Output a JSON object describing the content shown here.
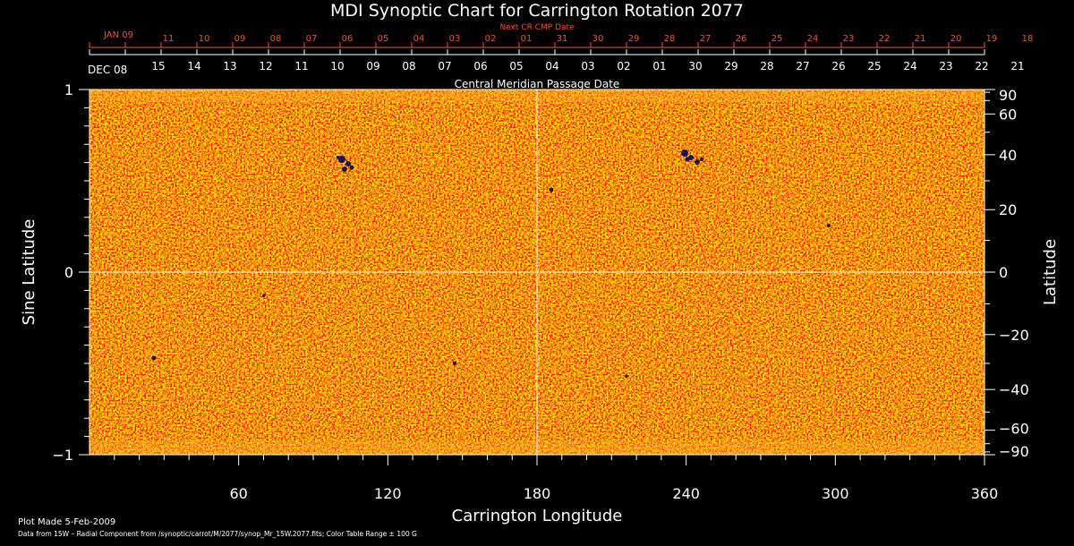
{
  "chart_data": {
    "type": "heatmap",
    "title": "MDI Synoptic Chart for Carrington Rotation 2077",
    "xlabel": "Carrington Longitude",
    "ylabel_left": "Sine Latitude",
    "ylabel_right": "Latitude",
    "xlim": [
      0,
      360
    ],
    "ylim": [
      -1,
      1
    ],
    "x_ticks": [
      60,
      120,
      180,
      240,
      300,
      360
    ],
    "y_left_ticks": [
      {
        "value": 1,
        "label": "1"
      },
      {
        "value": 0,
        "label": "0"
      },
      {
        "value": -1,
        "label": "−1"
      }
    ],
    "y_right_ticks": [
      {
        "deg": 90,
        "label": "90"
      },
      {
        "deg": 60,
        "label": "60"
      },
      {
        "deg": 40,
        "label": "40"
      },
      {
        "deg": 20,
        "label": "20"
      },
      {
        "deg": 0,
        "label": "0"
      },
      {
        "deg": -20,
        "label": "−20"
      },
      {
        "deg": -40,
        "label": "−40"
      },
      {
        "deg": -60,
        "label": "−60"
      },
      {
        "deg": -90,
        "label": "−90"
      }
    ],
    "crosshair": {
      "longitude": 180,
      "sine_latitude": 0
    },
    "cmp_axis": {
      "label": "Central Meridian Passage Date",
      "start_label": "DEC 08",
      "labels": [
        "15",
        "14",
        "13",
        "12",
        "11",
        "10",
        "09",
        "08",
        "07",
        "06",
        "05",
        "04",
        "03",
        "02",
        "01",
        "30",
        "29",
        "28",
        "27",
        "26",
        "25",
        "24",
        "23",
        "22",
        "21"
      ]
    },
    "next_cr_axis": {
      "label": "Next CR CMP Date",
      "start_label": "JAN 09",
      "labels": [
        "11",
        "10",
        "09",
        "08",
        "07",
        "06",
        "05",
        "04",
        "03",
        "02",
        "01",
        "31",
        "30",
        "29",
        "28",
        "27",
        "26",
        "25",
        "24",
        "23",
        "22",
        "21",
        "20",
        "19",
        "18"
      ]
    },
    "color_range": "± 100 G",
    "colors": {
      "background": "#000000",
      "field": "#ff4e12",
      "positive": "#ffd84a",
      "negative": "#1a1060",
      "axis": "#ffffff",
      "next_cr": "#ff5020"
    }
  },
  "footer": {
    "plot_made": "Plot Made  5-Feb-2009",
    "data_source": "Data from 15W – Radial Component from /synoptic/carrot/M/2077/synop_Mr_15W.2077.fits; Color Table Range ± 100 G"
  }
}
